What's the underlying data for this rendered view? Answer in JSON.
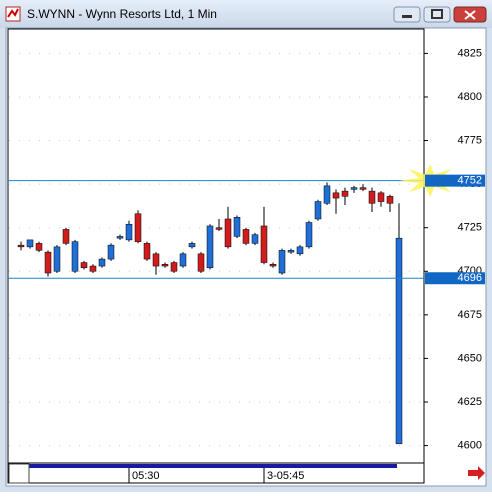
{
  "window": {
    "title": "S.WYNN - Wynn Resorts Ltd, 1 Min"
  },
  "chart_data": {
    "type": "candlestick",
    "categories": [
      null,
      null,
      null,
      null,
      null,
      null,
      null,
      null,
      null,
      null,
      null,
      null,
      "05:30",
      null,
      null,
      null,
      null,
      null,
      null,
      null,
      null,
      null,
      null,
      null,
      null,
      null,
      null,
      "3-05:45",
      null,
      null,
      null,
      null,
      null,
      null,
      null,
      null,
      null,
      null,
      null,
      null,
      null,
      null,
      null
    ],
    "open": [
      4715,
      4714,
      4716,
      4711,
      4700,
      4724,
      4700,
      4705,
      4703,
      4703,
      4707,
      4719,
      4718,
      4733,
      4716,
      4710,
      4704,
      4705,
      4703,
      4714,
      4710,
      4702,
      4725,
      4730,
      4720,
      4724,
      4716,
      4726,
      4704,
      4699,
      4711,
      4710,
      4714,
      4730,
      4739,
      4745,
      4746,
      4747,
      4748,
      4746,
      4745,
      4743,
      4601
    ],
    "high": [
      4717,
      4718,
      4717,
      4712,
      4715,
      4725,
      4718,
      4706,
      4704,
      4708,
      4716,
      4721,
      4729,
      4735,
      4717,
      4711,
      4705,
      4706,
      4711,
      4717,
      4711,
      4727,
      4730,
      4737,
      4732,
      4725,
      4722,
      4737,
      4705,
      4713,
      4713,
      4715,
      4729,
      4741,
      4751,
      4747,
      4748,
      4749,
      4750,
      4748,
      4746,
      4744,
      4739
    ],
    "low": [
      4712,
      4713,
      4711,
      4697,
      4699,
      4715,
      4699,
      4701,
      4699,
      4702,
      4706,
      4718,
      4717,
      4716,
      4706,
      4698,
      4702,
      4699,
      4702,
      4713,
      4699,
      4701,
      4723,
      4713,
      4719,
      4715,
      4715,
      4704,
      4702,
      4698,
      4710,
      4709,
      4713,
      4729,
      4738,
      4733,
      4738,
      4745,
      4746,
      4734,
      4737,
      4734,
      4601
    ],
    "close": [
      4714,
      4718,
      4712,
      4699,
      4714,
      4716,
      4717,
      4702,
      4700,
      4707,
      4715,
      4720,
      4727,
      4717,
      4707,
      4703,
      4703,
      4700,
      4710,
      4716,
      4700,
      4726,
      4724,
      4714,
      4731,
      4716,
      4721,
      4705,
      4703,
      4712,
      4712,
      4714,
      4728,
      4740,
      4749,
      4742,
      4743,
      4748,
      4747,
      4739,
      4740,
      4739,
      4719
    ],
    "up_color": "#1f6fd6",
    "down_color": "#d01c1c",
    "ylim": [
      4590,
      4839
    ],
    "yticks": [
      4600,
      4625,
      4650,
      4675,
      4700,
      4725,
      4750,
      4775,
      4800,
      4825
    ],
    "grid": true,
    "hlines": [
      4752,
      4696
    ],
    "hline_color": "#1a86c8"
  }
}
